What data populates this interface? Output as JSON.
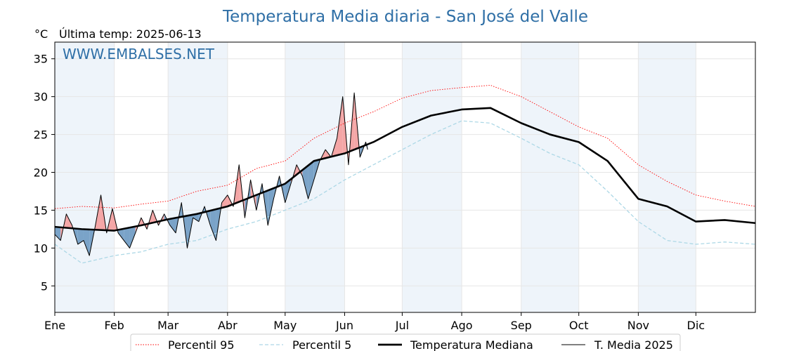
{
  "chart_data": {
    "type": "line",
    "title": "Temperatura Media diaria - San José del Valle",
    "unit_label": "°C",
    "last_update": "Última temp: 2025-06-13",
    "watermark": "WWW.EMBALSES.NET",
    "x_ticks": [
      "Ene",
      "Feb",
      "Mar",
      "Abr",
      "May",
      "Jun",
      "Jul",
      "Ago",
      "Sep",
      "Oct",
      "Nov",
      "Dic"
    ],
    "month_start_day": [
      1,
      32,
      60,
      91,
      121,
      152,
      182,
      213,
      244,
      274,
      305,
      335
    ],
    "xlim": [
      1,
      366
    ],
    "ylim": [
      1.5,
      37.2
    ],
    "y_ticks": [
      5,
      10,
      15,
      20,
      25,
      30,
      35
    ],
    "grid": true,
    "legend_position": "bottom",
    "colors": {
      "title": "#2f6fa6",
      "p95": "#ff0000",
      "p5": "#add8e6",
      "median": "#000000",
      "t2025": "#000000",
      "above_fill": "#f4a6a6",
      "above_strong": "#e06060",
      "below_fill": "#7aa3c8",
      "band": "#eef4fa"
    },
    "series": [
      {
        "name": "Percentil 95",
        "style": "dotted",
        "x": [
          1,
          15,
          32,
          46,
          60,
          75,
          91,
          106,
          121,
          136,
          152,
          167,
          182,
          197,
          213,
          228,
          244,
          259,
          274,
          289,
          305,
          320,
          335,
          350,
          366
        ],
        "y": [
          15.2,
          15.5,
          15.3,
          15.8,
          16.2,
          17.5,
          18.3,
          20.5,
          21.5,
          24.5,
          26.5,
          28.0,
          29.8,
          30.8,
          31.2,
          31.5,
          30.0,
          28.0,
          26.0,
          24.5,
          21.0,
          18.8,
          17.0,
          16.2,
          15.5
        ]
      },
      {
        "name": "Percentil 5",
        "style": "dashed",
        "x": [
          1,
          15,
          32,
          46,
          60,
          75,
          91,
          106,
          121,
          136,
          152,
          167,
          182,
          197,
          213,
          228,
          244,
          259,
          274,
          289,
          305,
          320,
          335,
          350,
          366
        ],
        "y": [
          10.5,
          8.0,
          9.0,
          9.5,
          10.5,
          11.0,
          12.5,
          13.5,
          15.0,
          16.5,
          19.0,
          21.0,
          23.0,
          25.0,
          26.8,
          26.5,
          24.5,
          22.5,
          21.0,
          17.5,
          13.5,
          11.0,
          10.5,
          10.8,
          10.5
        ]
      },
      {
        "name": "Temperatura Mediana",
        "style": "solid-thick",
        "x": [
          1,
          15,
          32,
          46,
          60,
          75,
          91,
          106,
          121,
          136,
          152,
          167,
          182,
          197,
          213,
          228,
          244,
          259,
          274,
          289,
          305,
          320,
          335,
          350,
          366
        ],
        "y": [
          12.8,
          12.5,
          12.3,
          13.0,
          13.8,
          14.5,
          15.5,
          17.0,
          18.5,
          21.5,
          22.5,
          24.0,
          26.0,
          27.5,
          28.3,
          28.5,
          26.5,
          25.0,
          24.0,
          21.5,
          16.5,
          15.5,
          13.5,
          13.7,
          13.3
        ]
      },
      {
        "name": "T. Media 2025",
        "style": "solid-thin",
        "x": [
          1,
          4,
          7,
          10,
          13,
          16,
          19,
          22,
          25,
          28,
          31,
          34,
          37,
          40,
          43,
          46,
          49,
          52,
          55,
          58,
          61,
          64,
          67,
          70,
          73,
          76,
          79,
          82,
          85,
          88,
          91,
          94,
          97,
          100,
          103,
          106,
          109,
          112,
          115,
          118,
          121,
          124,
          127,
          130,
          133,
          136,
          139,
          142,
          145,
          148,
          151,
          154,
          157,
          160,
          163,
          164
        ],
        "y": [
          11.8,
          11.0,
          14.5,
          13.0,
          10.5,
          11.0,
          9.0,
          12.8,
          17.0,
          12.0,
          15.2,
          12.0,
          11.0,
          10.0,
          12.0,
          14.0,
          12.5,
          15.0,
          13.0,
          14.5,
          13.0,
          12.0,
          16.0,
          10.0,
          14.0,
          13.5,
          15.5,
          13.0,
          11.0,
          16.0,
          17.0,
          15.5,
          21.0,
          14.0,
          19.0,
          15.0,
          18.5,
          13.0,
          16.5,
          19.5,
          16.0,
          18.5,
          21.0,
          19.5,
          16.5,
          19.0,
          21.5,
          23.0,
          22.0,
          24.5,
          30.0,
          21.0,
          30.5,
          22.0,
          24.0,
          23.0
        ]
      }
    ]
  },
  "legend": {
    "p95": "Percentil 95",
    "p5": "Percentil 5",
    "median": "Temperatura Mediana",
    "t2025": "T. Media 2025"
  }
}
